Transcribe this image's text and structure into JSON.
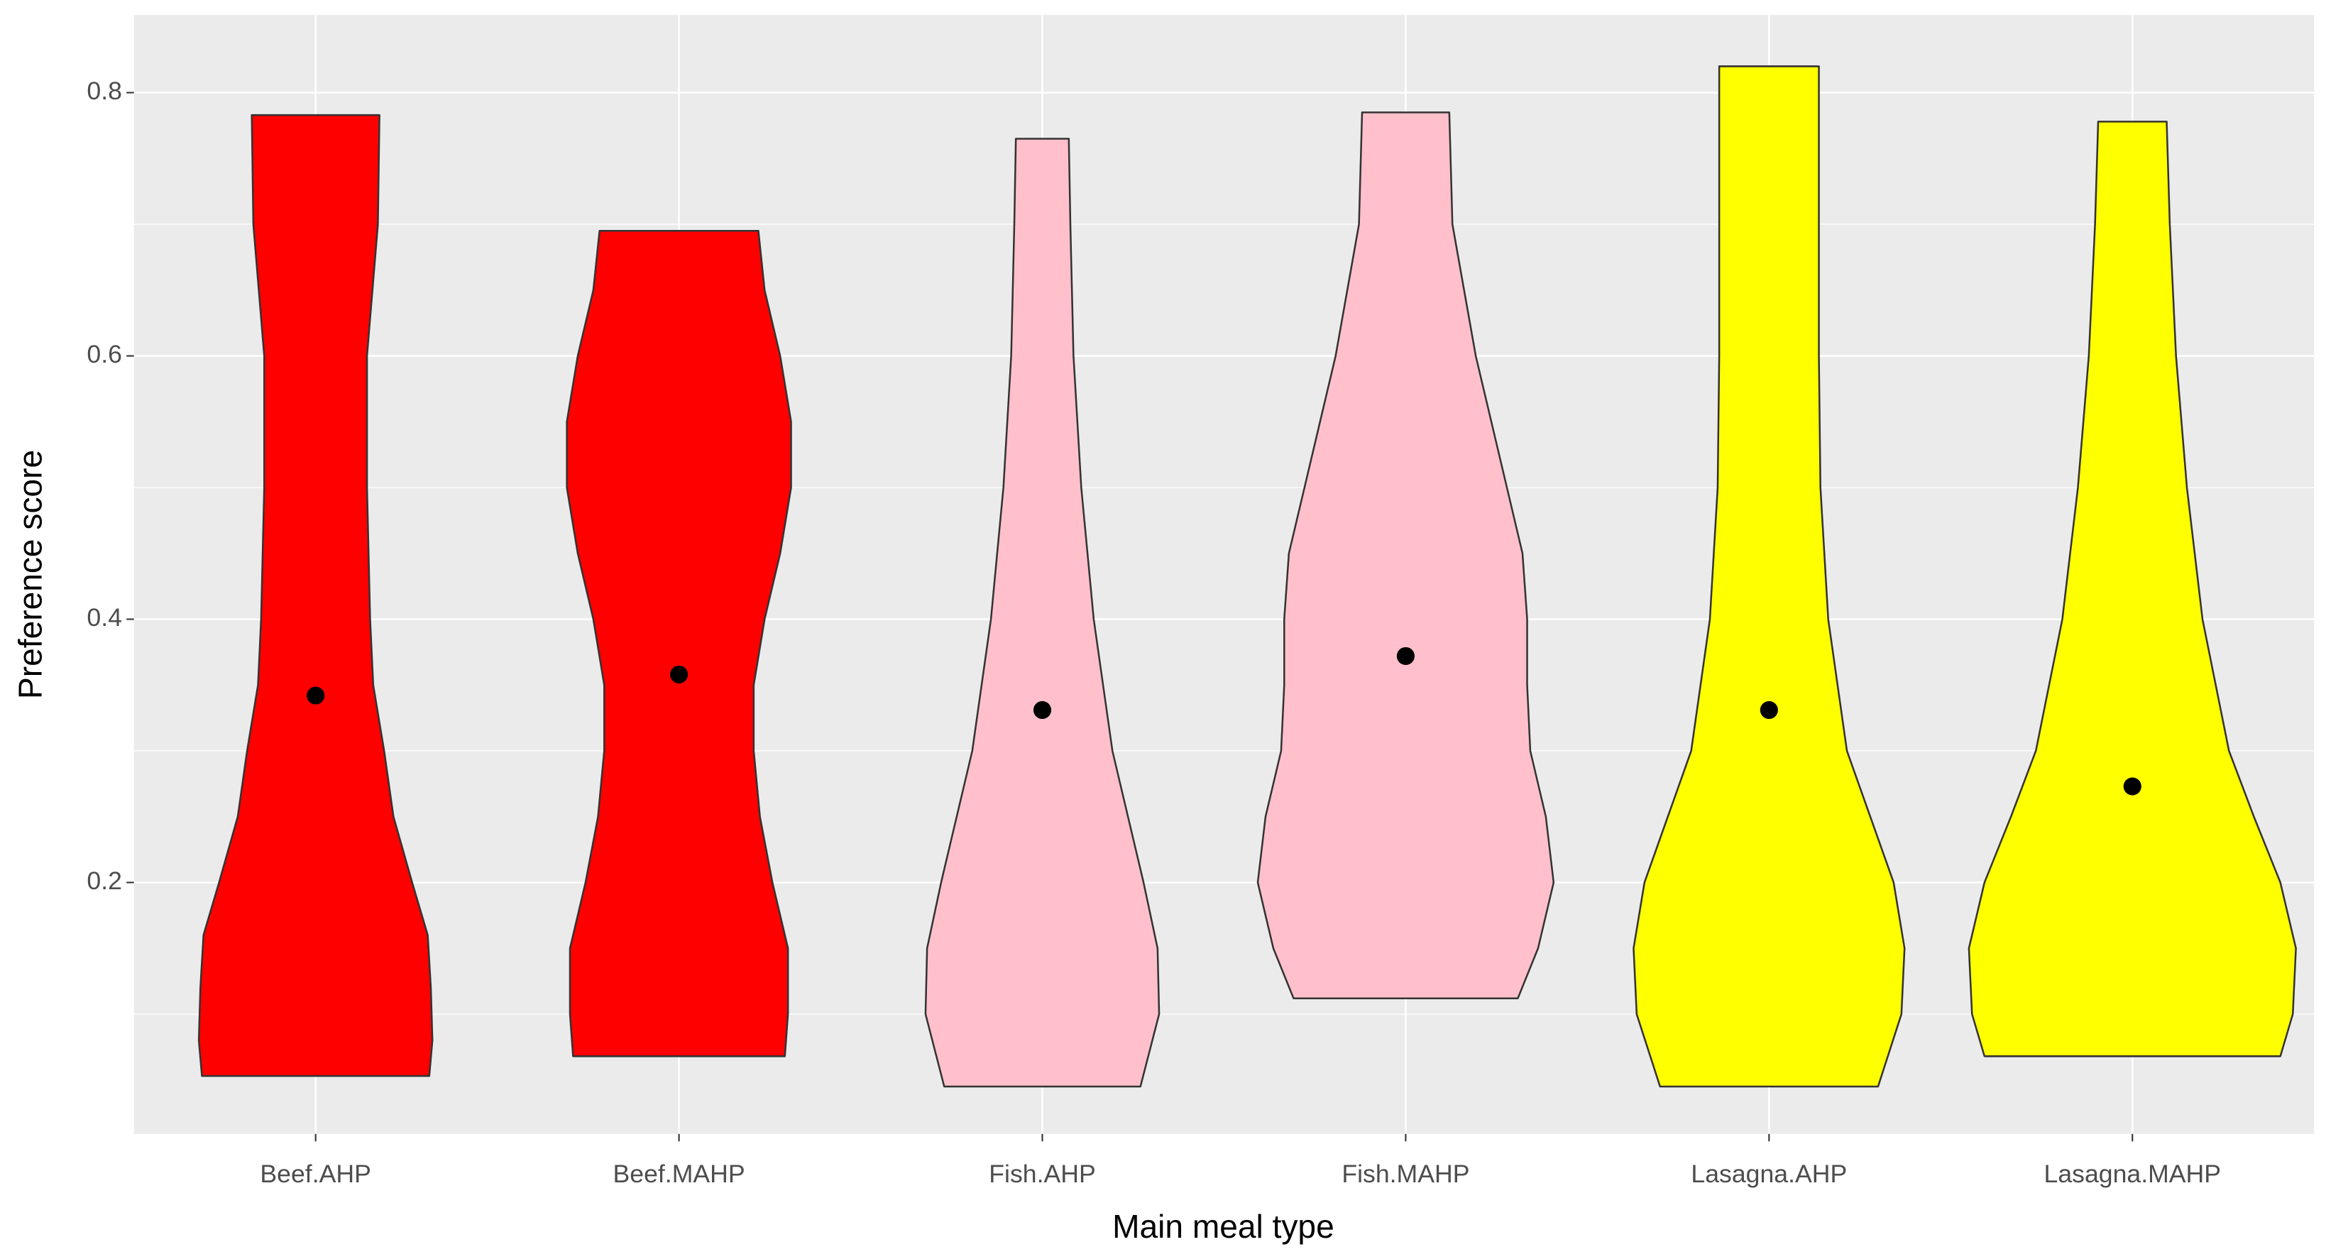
{
  "chart_data": {
    "type": "violin",
    "x_label": "Main meal type",
    "y_label": "Preference score",
    "categories": [
      "Beef.AHP",
      "Beef.MAHP",
      "Fish.AHP",
      "Fish.MAHP",
      "Lasagna.AHP",
      "Lasagna.MAHP"
    ],
    "violins": [
      {
        "color": "#ff0000",
        "y": [
          0.053,
          0.08,
          0.12,
          0.16,
          0.2,
          0.25,
          0.3,
          0.35,
          0.4,
          0.5,
          0.6,
          0.7,
          0.783
        ],
        "widths": [
          0.73,
          0.75,
          0.74,
          0.72,
          0.62,
          0.5,
          0.44,
          0.37,
          0.35,
          0.33,
          0.33,
          0.4,
          0.41
        ]
      },
      {
        "color": "#ff0000",
        "y": [
          0.068,
          0.1,
          0.15,
          0.2,
          0.25,
          0.3,
          0.35,
          0.4,
          0.45,
          0.5,
          0.55,
          0.6,
          0.65,
          0.695
        ],
        "widths": [
          0.68,
          0.7,
          0.7,
          0.6,
          0.52,
          0.48,
          0.48,
          0.55,
          0.65,
          0.72,
          0.72,
          0.65,
          0.55,
          0.51
        ]
      },
      {
        "color": "#ffc0cb",
        "y": [
          0.045,
          0.1,
          0.15,
          0.2,
          0.25,
          0.3,
          0.4,
          0.5,
          0.6,
          0.7,
          0.765
        ],
        "widths": [
          0.63,
          0.75,
          0.74,
          0.65,
          0.55,
          0.45,
          0.33,
          0.25,
          0.2,
          0.18,
          0.17
        ]
      },
      {
        "color": "#ffc0cb",
        "y": [
          0.112,
          0.15,
          0.2,
          0.25,
          0.3,
          0.35,
          0.4,
          0.45,
          0.5,
          0.6,
          0.7,
          0.785
        ],
        "widths": [
          0.72,
          0.85,
          0.95,
          0.9,
          0.8,
          0.78,
          0.78,
          0.75,
          0.65,
          0.45,
          0.3,
          0.28
        ]
      },
      {
        "color": "#ffff00",
        "y": [
          0.045,
          0.1,
          0.15,
          0.2,
          0.25,
          0.3,
          0.4,
          0.5,
          0.6,
          0.7,
          0.82
        ],
        "widths": [
          0.7,
          0.85,
          0.87,
          0.8,
          0.65,
          0.5,
          0.38,
          0.33,
          0.32,
          0.32,
          0.32
        ]
      },
      {
        "color": "#ffff00",
        "y": [
          0.068,
          0.1,
          0.15,
          0.2,
          0.25,
          0.3,
          0.4,
          0.5,
          0.6,
          0.7,
          0.778
        ],
        "widths": [
          0.95,
          1.03,
          1.05,
          0.95,
          0.78,
          0.62,
          0.45,
          0.35,
          0.28,
          0.24,
          0.22
        ]
      }
    ],
    "means": [
      0.342,
      0.358,
      0.331,
      0.372,
      0.331,
      0.273
    ],
    "ylim": [
      0.009,
      0.859
    ],
    "yticks": [
      0.2,
      0.4,
      0.6,
      0.8
    ],
    "yminorticks": [
      0.1,
      0.3,
      0.5,
      0.7
    ],
    "grid": true
  }
}
